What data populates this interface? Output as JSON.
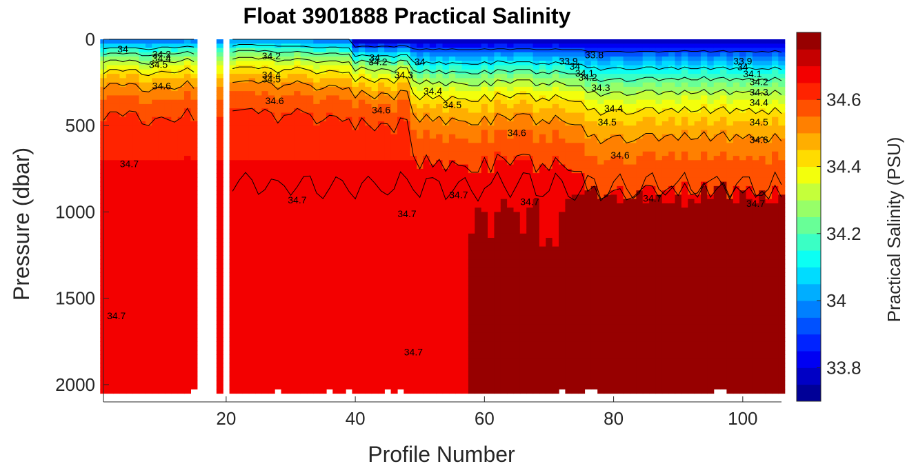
{
  "chart_data": {
    "type": "heatmap",
    "title": "Float 3901888 Practical Salinity",
    "xlabel": "Profile Number",
    "ylabel": "Pressure (dbar)",
    "colorbar_label": "Practical Salinity (PSU)",
    "xlim": [
      1,
      106
    ],
    "ylim": [
      0,
      2100
    ],
    "y_reversed": true,
    "clim": [
      33.7,
      34.8
    ],
    "x_ticks": [
      20,
      40,
      60,
      80,
      100
    ],
    "y_ticks": [
      0,
      500,
      1000,
      1500,
      2000
    ],
    "colorbar_ticks": [
      33.8,
      34,
      34.2,
      34.4,
      34.6
    ],
    "colormap": "jet",
    "grid": false,
    "missing_profiles": [
      16,
      17,
      18,
      20
    ],
    "contour_levels": [
      33.9,
      34.1,
      34.2,
      34.3,
      34.4,
      34.5,
      34.6,
      34.7
    ],
    "contour_labels": [
      {
        "text": "34",
        "x": 4,
        "y": 75
      },
      {
        "text": "34.2",
        "x": 10,
        "y": 105
      },
      {
        "text": "34.4",
        "x": 10,
        "y": 130
      },
      {
        "text": "34.5",
        "x": 9.5,
        "y": 165
      },
      {
        "text": "34.6",
        "x": 10,
        "y": 290
      },
      {
        "text": "34.7",
        "x": 5,
        "y": 740
      },
      {
        "text": "34.7",
        "x": 3,
        "y": 1620
      },
      {
        "text": "34.2",
        "x": 27,
        "y": 115
      },
      {
        "text": "34.4",
        "x": 27,
        "y": 225
      },
      {
        "text": "34.5",
        "x": 27,
        "y": 250
      },
      {
        "text": "34.6",
        "x": 27.5,
        "y": 375
      },
      {
        "text": "34.7",
        "x": 31,
        "y": 950
      },
      {
        "text": "34",
        "x": 43,
        "y": 125
      },
      {
        "text": "34.2",
        "x": 43.5,
        "y": 150
      },
      {
        "text": "34.3",
        "x": 47.5,
        "y": 225
      },
      {
        "text": "34",
        "x": 50,
        "y": 150
      },
      {
        "text": "34.4",
        "x": 52,
        "y": 320
      },
      {
        "text": "34.5",
        "x": 55,
        "y": 400
      },
      {
        "text": "34.6",
        "x": 44,
        "y": 430
      },
      {
        "text": "34.7",
        "x": 48,
        "y": 1030
      },
      {
        "text": "34.7",
        "x": 56,
        "y": 920
      },
      {
        "text": "34.7",
        "x": 49,
        "y": 1830
      },
      {
        "text": "34.6",
        "x": 65,
        "y": 560
      },
      {
        "text": "34.7",
        "x": 67,
        "y": 960
      },
      {
        "text": "33.9",
        "x": 73,
        "y": 145
      },
      {
        "text": "33.8",
        "x": 77,
        "y": 110
      },
      {
        "text": "34",
        "x": 74,
        "y": 175
      },
      {
        "text": "34.1",
        "x": 75.5,
        "y": 215
      },
      {
        "text": "34.2",
        "x": 76,
        "y": 240
      },
      {
        "text": "34.3",
        "x": 78,
        "y": 300
      },
      {
        "text": "34.4",
        "x": 80,
        "y": 420
      },
      {
        "text": "34.5",
        "x": 79,
        "y": 500
      },
      {
        "text": "34.6",
        "x": 81,
        "y": 690
      },
      {
        "text": "34.7",
        "x": 86,
        "y": 940
      },
      {
        "text": "33.9",
        "x": 100,
        "y": 145
      },
      {
        "text": "34",
        "x": 100,
        "y": 180
      },
      {
        "text": "34.1",
        "x": 101.5,
        "y": 220
      },
      {
        "text": "34.2",
        "x": 102.5,
        "y": 265
      },
      {
        "text": "34.3",
        "x": 102.5,
        "y": 325
      },
      {
        "text": "34.4",
        "x": 102.5,
        "y": 385
      },
      {
        "text": "34.5",
        "x": 102.5,
        "y": 500
      },
      {
        "text": "34.6",
        "x": 102.5,
        "y": 600
      },
      {
        "text": "34.7",
        "x": 102,
        "y": 970
      }
    ]
  }
}
